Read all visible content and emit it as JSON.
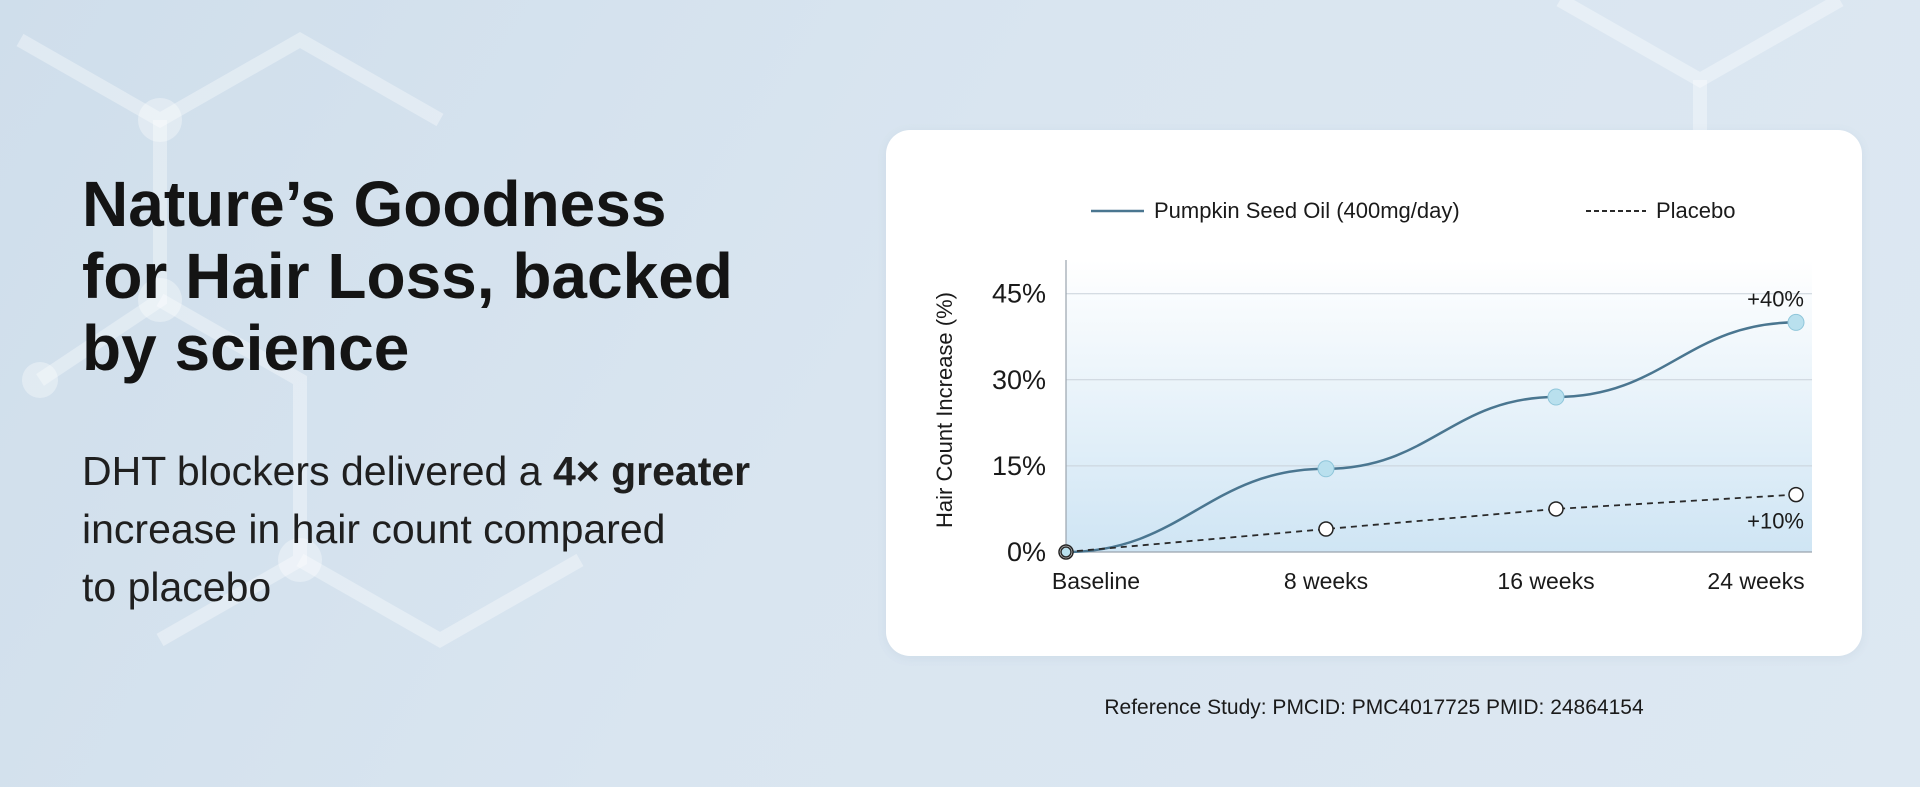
{
  "headline": {
    "line1": "Nature’s Goodness",
    "line2": "for Hair Loss, backed",
    "line3": "by science"
  },
  "subtext": {
    "part1": "DHT blockers delivered a ",
    "bold": "4× greater",
    "part2": "increase in hair count compared",
    "part3": "to placebo"
  },
  "reference": "Reference Study: PMCID: PMC4017725  PMID: 24864154",
  "colors": {
    "series_line": "#4a7690",
    "series_marker": "#b9e0ee",
    "placebo_line": "#2a2a2a",
    "fill_top": "#ffffff",
    "fill_bottom": "#cfe5f4"
  },
  "chart_data": {
    "type": "line",
    "categories": [
      "Baseline",
      "8 weeks",
      "16 weeks",
      "24 weeks"
    ],
    "ylabel": "Hair Count Increase (%)",
    "yticks": [
      "0%",
      "15%",
      "30%",
      "45%"
    ],
    "ytick_values": [
      0,
      15,
      30,
      45
    ],
    "ylim": [
      0,
      50
    ],
    "grid": true,
    "legend_position": "top",
    "series": [
      {
        "name": "Pumpkin Seed Oil (400mg/day)",
        "style": "solid",
        "values": [
          0,
          14.5,
          27,
          40
        ],
        "end_label": "+40%"
      },
      {
        "name": "Placebo",
        "style": "dashed",
        "values": [
          0,
          4,
          7.5,
          10
        ],
        "end_label": "+10%"
      }
    ]
  }
}
